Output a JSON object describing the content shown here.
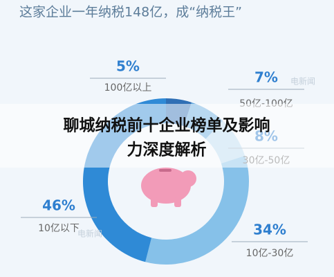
{
  "chart_data": {
    "type": "pie",
    "donut": true,
    "title": "这家企业一年纳税148亿，成“纳税王”",
    "categories": [
      "100亿以上",
      "50亿-100亿",
      "30亿-50亿",
      "10亿-30亿",
      "10亿以下"
    ],
    "values": [
      5,
      7,
      8,
      34,
      46
    ],
    "value_labels": [
      "5%",
      "7%",
      "8%",
      "34%",
      "46%"
    ],
    "colors": [
      "#2f6fb5",
      "#63a9de",
      "#b8d9ef",
      "#86c1e9",
      "#2f8ad6"
    ],
    "watermarks": [
      "电新闻",
      "电新闻"
    ]
  },
  "banner": [
    "聊城纳税前十企业榜单及影响",
    "力深度解析"
  ]
}
